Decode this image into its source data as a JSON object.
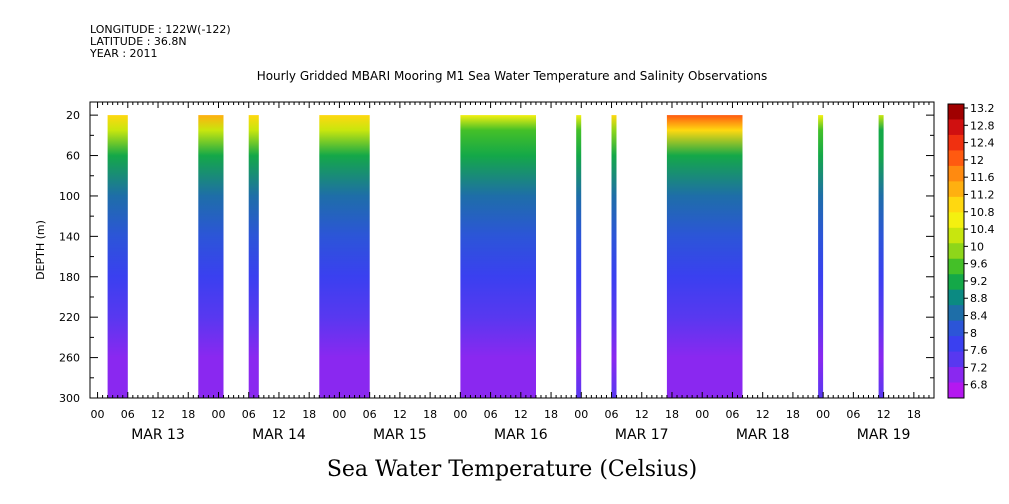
{
  "meta": {
    "longitude": "LONGITUDE : 122W(-122)",
    "latitude": "LATITUDE : 36.8N",
    "year": "YEAR : 2011"
  },
  "chart_data": {
    "type": "heatmap",
    "title": "Hourly Gridded MBARI Mooring M1 Sea Water Temperature and Salinity Observations",
    "xlabel": "",
    "ylabel": "DEPTH (m)",
    "colorbar_label": "Sea Water Temperature (Celsius)",
    "y_ticks": [
      20,
      60,
      100,
      140,
      180,
      220,
      260,
      300
    ],
    "ylim": [
      300,
      20
    ],
    "x_hour_ticks": [
      "00",
      "06",
      "12",
      "18",
      "00",
      "06",
      "12",
      "18",
      "00",
      "06",
      "12",
      "18",
      "00",
      "06",
      "12",
      "18",
      "00",
      "06",
      "12",
      "18",
      "00",
      "06",
      "12",
      "18",
      "00",
      "06",
      "12",
      "18"
    ],
    "x_day_labels": [
      "MAR 13",
      "MAR 14",
      "MAR 15",
      "MAR 16",
      "MAR 17",
      "MAR 18",
      "MAR 19"
    ],
    "x_range_hours_from_mar13_00": [
      -1.5,
      166
    ],
    "data_segments": [
      {
        "start": "MAR 13 02:00",
        "end": "MAR 13 06:00",
        "surface_temp": 11.2,
        "bottom_temp": 7.0
      },
      {
        "start": "MAR 13 20:00",
        "end": "MAR 14 01:00",
        "surface_temp": 11.4,
        "bottom_temp": 7.0
      },
      {
        "start": "MAR 14 06:00",
        "end": "MAR 14 08:00",
        "surface_temp": 11.2,
        "bottom_temp": 7.0
      },
      {
        "start": "MAR 14 20:00",
        "end": "MAR 15 06:00",
        "surface_temp": 11.2,
        "bottom_temp": 7.0
      },
      {
        "start": "MAR 16 00:00",
        "end": "MAR 16 15:00",
        "surface_temp": 10.8,
        "bottom_temp": 7.0
      },
      {
        "start": "MAR 16 23:00",
        "end": "MAR 17 00:00",
        "surface_temp": 10.6,
        "bottom_temp": 7.4
      },
      {
        "start": "MAR 17 06:00",
        "end": "MAR 17 07:00",
        "surface_temp": 11.0,
        "bottom_temp": 7.4
      },
      {
        "start": "MAR 17 17:00",
        "end": "MAR 18 08:00",
        "surface_temp": 12.2,
        "bottom_temp": 7.0
      },
      {
        "start": "MAR 18 23:00",
        "end": "MAR 19 00:00",
        "surface_temp": 10.8,
        "bottom_temp": 7.4
      },
      {
        "start": "MAR 19 11:00",
        "end": "MAR 19 12:00",
        "surface_temp": 10.4,
        "bottom_temp": 7.4
      }
    ],
    "colorbar_ticks": [
      "13.2",
      "12.8",
      "12.4",
      "12",
      "11.6",
      "11.2",
      "10.8",
      "10.4",
      "10",
      "9.6",
      "9.2",
      "8.8",
      "8.4",
      "8",
      "7.6",
      "7.2",
      "6.8"
    ],
    "colorbar_colors": [
      "#a00000",
      "#d01010",
      "#f03010",
      "#ff5a10",
      "#ff8a10",
      "#ffb010",
      "#ffd810",
      "#f4f010",
      "#c8e60e",
      "#8ed61a",
      "#44c028",
      "#14a848",
      "#0b8a82",
      "#1e6ea8",
      "#2c55d8",
      "#3a40f0",
      "#5838f0",
      "#8a28f0",
      "#b418f0"
    ]
  }
}
